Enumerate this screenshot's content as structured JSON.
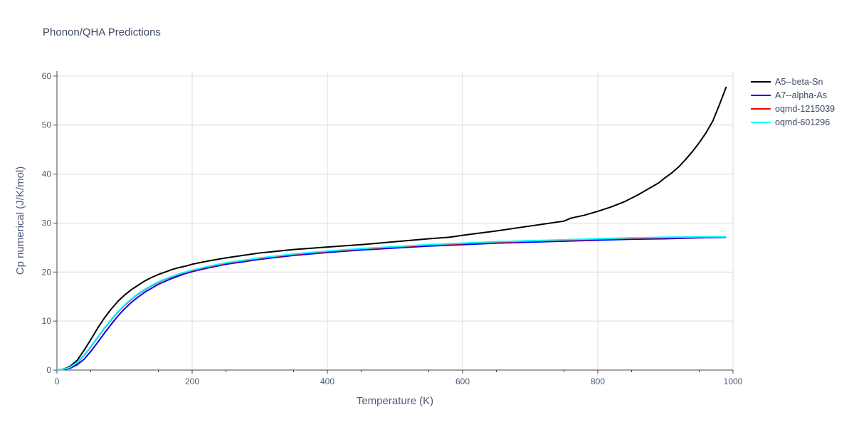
{
  "chart_data": {
    "type": "line",
    "title": "Phonon/QHA Predictions",
    "xlabel": "Temperature (K)",
    "ylabel": "Cp numerical (J/K/mol)",
    "xlim": [
      0,
      1000
    ],
    "ylim": [
      0,
      61
    ],
    "xticks": [
      0,
      200,
      400,
      600,
      800,
      1000
    ],
    "yticks": [
      0,
      10,
      20,
      30,
      40,
      50,
      60
    ],
    "grid": true,
    "legend_position": "top-right outside",
    "series": [
      {
        "name": "A5--beta-Sn",
        "color": "#000000",
        "x": [
          0,
          10,
          20,
          30,
          40,
          50,
          60,
          70,
          80,
          90,
          100,
          110,
          120,
          130,
          140,
          150,
          160,
          170,
          180,
          190,
          200,
          225,
          250,
          275,
          300,
          350,
          400,
          450,
          500,
          550,
          580,
          600,
          650,
          700,
          750,
          760,
          780,
          800,
          820,
          840,
          860,
          880,
          890,
          900,
          910,
          920,
          930,
          940,
          950,
          960,
          970,
          980,
          990
        ],
        "values": [
          0,
          0.2,
          0.8,
          2.0,
          4.0,
          6.2,
          8.5,
          10.6,
          12.4,
          14.0,
          15.3,
          16.4,
          17.3,
          18.2,
          18.9,
          19.5,
          20.0,
          20.5,
          20.9,
          21.2,
          21.6,
          22.3,
          22.9,
          23.4,
          23.9,
          24.6,
          25.1,
          25.6,
          26.2,
          26.8,
          27.1,
          27.5,
          28.4,
          29.4,
          30.4,
          31.0,
          31.6,
          32.4,
          33.3,
          34.4,
          35.8,
          37.4,
          38.2,
          39.3,
          40.3,
          41.5,
          43.0,
          44.6,
          46.4,
          48.4,
          50.8,
          54.2,
          57.8
        ]
      },
      {
        "name": "A7--alpha-As",
        "color": "#0000ff",
        "x": [
          0,
          10,
          20,
          30,
          40,
          50,
          60,
          70,
          80,
          90,
          100,
          110,
          120,
          130,
          140,
          150,
          160,
          170,
          180,
          190,
          200,
          225,
          250,
          275,
          300,
          350,
          400,
          450,
          500,
          550,
          600,
          650,
          700,
          750,
          800,
          850,
          900,
          950,
          990
        ],
        "values": [
          0,
          0.1,
          0.4,
          1.1,
          2.2,
          3.8,
          5.6,
          7.5,
          9.3,
          11.0,
          12.5,
          13.8,
          14.9,
          15.9,
          16.7,
          17.5,
          18.1,
          18.7,
          19.2,
          19.7,
          20.1,
          20.9,
          21.6,
          22.1,
          22.6,
          23.4,
          24.0,
          24.5,
          24.9,
          25.3,
          25.6,
          25.9,
          26.1,
          26.3,
          26.5,
          26.7,
          26.8,
          27.0,
          27.1
        ]
      },
      {
        "name": "oqmd-1215039",
        "color": "#ff0000",
        "x": [
          0,
          10,
          20,
          30,
          40,
          50,
          60,
          70,
          80,
          90,
          100,
          110,
          120,
          130,
          140,
          150,
          160,
          170,
          180,
          190,
          200,
          225,
          250,
          275,
          300,
          350,
          400,
          450,
          500,
          550,
          600,
          650,
          700,
          750,
          800,
          850,
          900,
          950,
          990
        ],
        "values": [
          0,
          0.15,
          0.6,
          1.5,
          3.0,
          4.7,
          6.6,
          8.5,
          10.2,
          11.8,
          13.2,
          14.4,
          15.5,
          16.4,
          17.2,
          17.9,
          18.5,
          19.0,
          19.5,
          19.9,
          20.3,
          21.1,
          21.8,
          22.3,
          22.8,
          23.6,
          24.2,
          24.7,
          25.1,
          25.5,
          25.8,
          26.1,
          26.3,
          26.5,
          26.7,
          26.9,
          27.0,
          27.1,
          27.2
        ]
      },
      {
        "name": "oqmd-601296",
        "color": "#00ffff",
        "x": [
          0,
          10,
          20,
          30,
          40,
          50,
          60,
          70,
          80,
          90,
          100,
          110,
          120,
          130,
          140,
          150,
          160,
          170,
          180,
          190,
          200,
          225,
          250,
          275,
          300,
          350,
          400,
          450,
          500,
          550,
          600,
          650,
          700,
          750,
          800,
          850,
          900,
          950,
          990
        ],
        "values": [
          0,
          0.15,
          0.6,
          1.6,
          3.1,
          4.8,
          6.7,
          8.6,
          10.3,
          11.9,
          13.3,
          14.5,
          15.6,
          16.5,
          17.3,
          18.0,
          18.6,
          19.1,
          19.6,
          20.0,
          20.4,
          21.2,
          21.9,
          22.4,
          22.9,
          23.7,
          24.3,
          24.8,
          25.2,
          25.6,
          25.9,
          26.2,
          26.4,
          26.6,
          26.8,
          27.0,
          27.1,
          27.2,
          27.2
        ]
      }
    ]
  }
}
